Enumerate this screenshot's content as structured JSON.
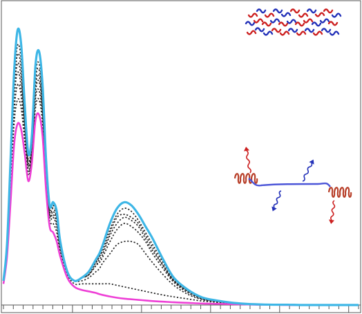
{
  "chart_data": {
    "type": "line",
    "title": "",
    "xlabel": "",
    "ylabel": "",
    "xlim": [
      0,
      100
    ],
    "ylim": [
      0,
      1
    ],
    "grid": false,
    "legend": "none",
    "x_minor_ticks": 36,
    "x_major_tick_every": 7,
    "colors": {
      "final": "#3db6e6",
      "initial": "#ee3fd6",
      "intermediate": "#222222",
      "red_monomer": "#cc2020",
      "blue_monomer": "#2230b8",
      "helix": "#b8402a",
      "linker": "#4b55d8"
    },
    "x": [
      0,
      1,
      2,
      3,
      4,
      5,
      6,
      7,
      8,
      9,
      10,
      11,
      12,
      13,
      14,
      15,
      16,
      18,
      20,
      22,
      24,
      26,
      27,
      28,
      30,
      32,
      34,
      36,
      38,
      40,
      42,
      45,
      48,
      52,
      56,
      60,
      64,
      68,
      72,
      76,
      80,
      84,
      88,
      92,
      96,
      100
    ],
    "series": [
      {
        "role": "final",
        "values": [
          0.08,
          0.2,
          0.48,
          0.77,
          0.91,
          0.86,
          0.66,
          0.5,
          0.56,
          0.79,
          0.84,
          0.73,
          0.48,
          0.33,
          0.34,
          0.31,
          0.21,
          0.11,
          0.08,
          0.09,
          0.11,
          0.15,
          0.17,
          0.2,
          0.27,
          0.32,
          0.34,
          0.33,
          0.3,
          0.26,
          0.22,
          0.15,
          0.09,
          0.05,
          0.025,
          0.015,
          0.008,
          0.004,
          0.002,
          0.001,
          0.001,
          0.0,
          0.0,
          0.0,
          0.0,
          0.0
        ]
      },
      {
        "role": "intermediate",
        "values": [
          0.08,
          0.2,
          0.46,
          0.74,
          0.86,
          0.81,
          0.63,
          0.48,
          0.54,
          0.76,
          0.8,
          0.7,
          0.46,
          0.32,
          0.33,
          0.3,
          0.2,
          0.11,
          0.08,
          0.09,
          0.11,
          0.14,
          0.16,
          0.19,
          0.25,
          0.3,
          0.32,
          0.31,
          0.28,
          0.24,
          0.2,
          0.14,
          0.085,
          0.05,
          0.025,
          0.015,
          0.008,
          0.004,
          0.002,
          0.001,
          0.001,
          0.0,
          0.0,
          0.0,
          0.0,
          0.0
        ]
      },
      {
        "role": "intermediate",
        "values": [
          0.08,
          0.19,
          0.45,
          0.72,
          0.83,
          0.78,
          0.61,
          0.47,
          0.53,
          0.74,
          0.78,
          0.68,
          0.45,
          0.31,
          0.32,
          0.29,
          0.2,
          0.11,
          0.08,
          0.09,
          0.1,
          0.14,
          0.16,
          0.18,
          0.24,
          0.29,
          0.3,
          0.29,
          0.27,
          0.23,
          0.19,
          0.13,
          0.08,
          0.045,
          0.022,
          0.013,
          0.007,
          0.004,
          0.002,
          0.001,
          0.001,
          0.0,
          0.0,
          0.0,
          0.0,
          0.0
        ]
      },
      {
        "role": "intermediate",
        "values": [
          0.08,
          0.19,
          0.44,
          0.7,
          0.8,
          0.75,
          0.6,
          0.46,
          0.52,
          0.72,
          0.76,
          0.66,
          0.44,
          0.3,
          0.31,
          0.28,
          0.19,
          0.11,
          0.08,
          0.09,
          0.1,
          0.13,
          0.15,
          0.17,
          0.23,
          0.27,
          0.29,
          0.28,
          0.26,
          0.22,
          0.18,
          0.13,
          0.08,
          0.045,
          0.022,
          0.013,
          0.007,
          0.004,
          0.002,
          0.001,
          0.001,
          0.0,
          0.0,
          0.0,
          0.0,
          0.0
        ]
      },
      {
        "role": "intermediate",
        "values": [
          0.08,
          0.18,
          0.43,
          0.68,
          0.77,
          0.72,
          0.58,
          0.45,
          0.51,
          0.7,
          0.74,
          0.64,
          0.43,
          0.3,
          0.3,
          0.27,
          0.19,
          0.11,
          0.08,
          0.09,
          0.1,
          0.13,
          0.14,
          0.16,
          0.21,
          0.25,
          0.27,
          0.26,
          0.24,
          0.21,
          0.17,
          0.12,
          0.075,
          0.04,
          0.02,
          0.012,
          0.006,
          0.003,
          0.002,
          0.001,
          0.001,
          0.0,
          0.0,
          0.0,
          0.0,
          0.0
        ]
      },
      {
        "role": "intermediate",
        "values": [
          0.08,
          0.18,
          0.41,
          0.64,
          0.73,
          0.69,
          0.56,
          0.44,
          0.5,
          0.68,
          0.71,
          0.62,
          0.41,
          0.29,
          0.29,
          0.26,
          0.18,
          0.1,
          0.08,
          0.08,
          0.09,
          0.11,
          0.12,
          0.14,
          0.17,
          0.2,
          0.21,
          0.21,
          0.2,
          0.17,
          0.14,
          0.1,
          0.065,
          0.035,
          0.018,
          0.011,
          0.006,
          0.003,
          0.002,
          0.001,
          0.001,
          0.0,
          0.0,
          0.0,
          0.0,
          0.0
        ]
      },
      {
        "role": "intermediate",
        "values": [
          0.08,
          0.17,
          0.38,
          0.6,
          0.68,
          0.65,
          0.54,
          0.43,
          0.49,
          0.65,
          0.68,
          0.6,
          0.4,
          0.28,
          0.27,
          0.24,
          0.17,
          0.1,
          0.07,
          0.07,
          0.07,
          0.07,
          0.07,
          0.07,
          0.07,
          0.065,
          0.06,
          0.055,
          0.05,
          0.045,
          0.04,
          0.033,
          0.027,
          0.02,
          0.013,
          0.009,
          0.005,
          0.003,
          0.002,
          0.001,
          0.001,
          0.0,
          0.0,
          0.0,
          0.0,
          0.0
        ]
      },
      {
        "role": "initial",
        "values": [
          0.07,
          0.16,
          0.34,
          0.53,
          0.6,
          0.58,
          0.5,
          0.41,
          0.47,
          0.61,
          0.63,
          0.56,
          0.38,
          0.26,
          0.24,
          0.21,
          0.16,
          0.09,
          0.06,
          0.05,
          0.045,
          0.04,
          0.036,
          0.033,
          0.028,
          0.024,
          0.021,
          0.019,
          0.017,
          0.015,
          0.013,
          0.011,
          0.009,
          0.007,
          0.005,
          0.004,
          0.003,
          0.002,
          0.001,
          0.001,
          0.0,
          0.0,
          0.0,
          0.0,
          0.0,
          0.0
        ]
      }
    ]
  }
}
